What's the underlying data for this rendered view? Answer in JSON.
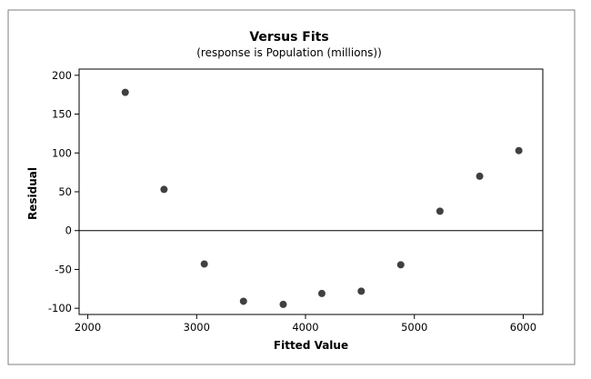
{
  "chart_data": {
    "type": "scatter",
    "title": "Versus Fits",
    "subtitle": "(response is Population (millions))",
    "xlabel": "Fitted Value",
    "ylabel": "Residual",
    "xlim": [
      1920,
      6180
    ],
    "ylim": [
      -108,
      208
    ],
    "xticks": [
      2000,
      3000,
      4000,
      5000,
      6000
    ],
    "yticks": [
      -100,
      -50,
      0,
      50,
      100,
      150,
      200
    ],
    "xtick_labels": [
      "2000",
      "3000",
      "4000",
      "5000",
      "6000"
    ],
    "ytick_labels": [
      "-100",
      "-50",
      "0",
      "50",
      "100",
      "150",
      "200"
    ],
    "reference_line_y": 0,
    "grid": false,
    "colors": {
      "point": "#404040",
      "frame": "#000000",
      "panel_border": "#7f7f7f",
      "background": "#ffffff"
    },
    "points": [
      {
        "x": 2344,
        "y": 178
      },
      {
        "x": 2700,
        "y": 53
      },
      {
        "x": 3070,
        "y": -43
      },
      {
        "x": 3430,
        "y": -91
      },
      {
        "x": 3795,
        "y": -95
      },
      {
        "x": 4150,
        "y": -81
      },
      {
        "x": 4512,
        "y": -78
      },
      {
        "x": 4875,
        "y": -44
      },
      {
        "x": 5235,
        "y": 25
      },
      {
        "x": 5600,
        "y": 70
      },
      {
        "x": 5960,
        "y": 103
      }
    ]
  }
}
